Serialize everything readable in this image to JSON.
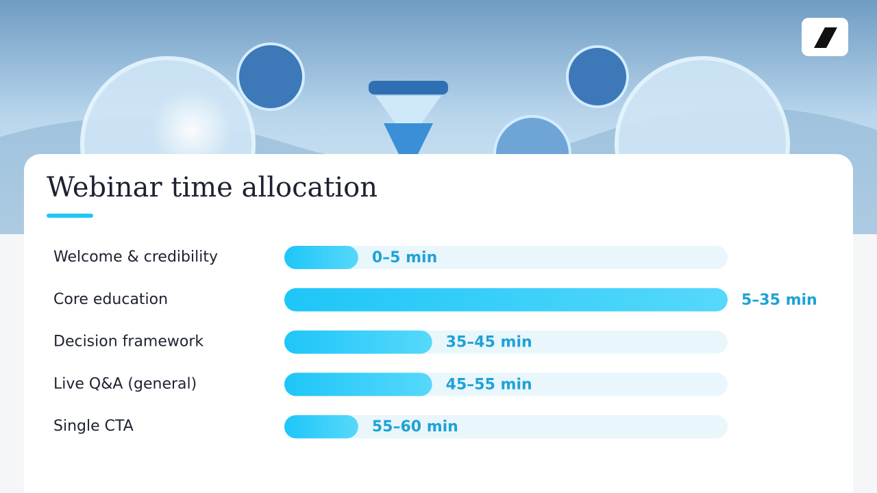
{
  "chart_data": {
    "type": "bar",
    "orientation": "horizontal",
    "title": "Webinar time allocation",
    "categories": [
      "Welcome & credibility",
      "Core education",
      "Decision framework",
      "Live Q&A (general)",
      "Single CTA"
    ],
    "values": [
      5,
      30,
      10,
      10,
      5
    ],
    "value_labels": [
      "0–5 min",
      "5–35 min",
      "35–45 min",
      "45–55 min",
      "55–60 min"
    ],
    "xlim": [
      0,
      30
    ],
    "color": "#1fc6f8",
    "track_color": "#e9f6fc",
    "label_color": "#1ea2d6"
  }
}
